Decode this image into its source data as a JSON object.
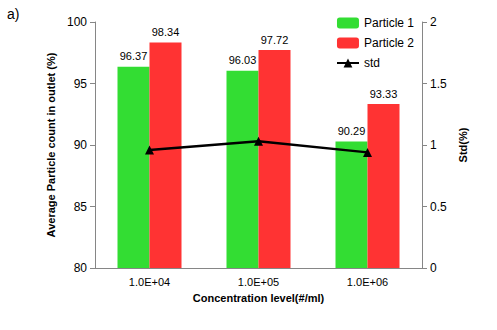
{
  "chart_data": {
    "type": "bar",
    "title": "a)",
    "categories": [
      "1.0E+04",
      "1.0E+05",
      "1.0E+06"
    ],
    "x_label": "Concentration level(#/ml)",
    "y_label": "Average Particle count in outlet (%)",
    "y2_label": "Std(%)",
    "ylim": [
      80,
      100
    ],
    "yticks": [
      80,
      85,
      90,
      95,
      100
    ],
    "y2lim": [
      0,
      2
    ],
    "y2ticks": [
      0,
      0.5,
      1,
      1.5,
      2
    ],
    "grid": false,
    "legend": "upper right",
    "series": [
      {
        "name": "Particle 1",
        "type": "bar",
        "color": "#33dd33",
        "values": [
          96.37,
          96.03,
          90.29
        ],
        "data_labels": true
      },
      {
        "name": "Particle 2",
        "type": "bar",
        "color": "#ff3333",
        "values": [
          98.34,
          97.72,
          93.33
        ],
        "data_labels": true
      },
      {
        "name": "std",
        "type": "line",
        "axis": "y2",
        "color": "#000000",
        "marker": "triangle",
        "line_style": "solid",
        "values": [
          0.96,
          1.03,
          0.94
        ],
        "data_labels": false
      }
    ]
  }
}
